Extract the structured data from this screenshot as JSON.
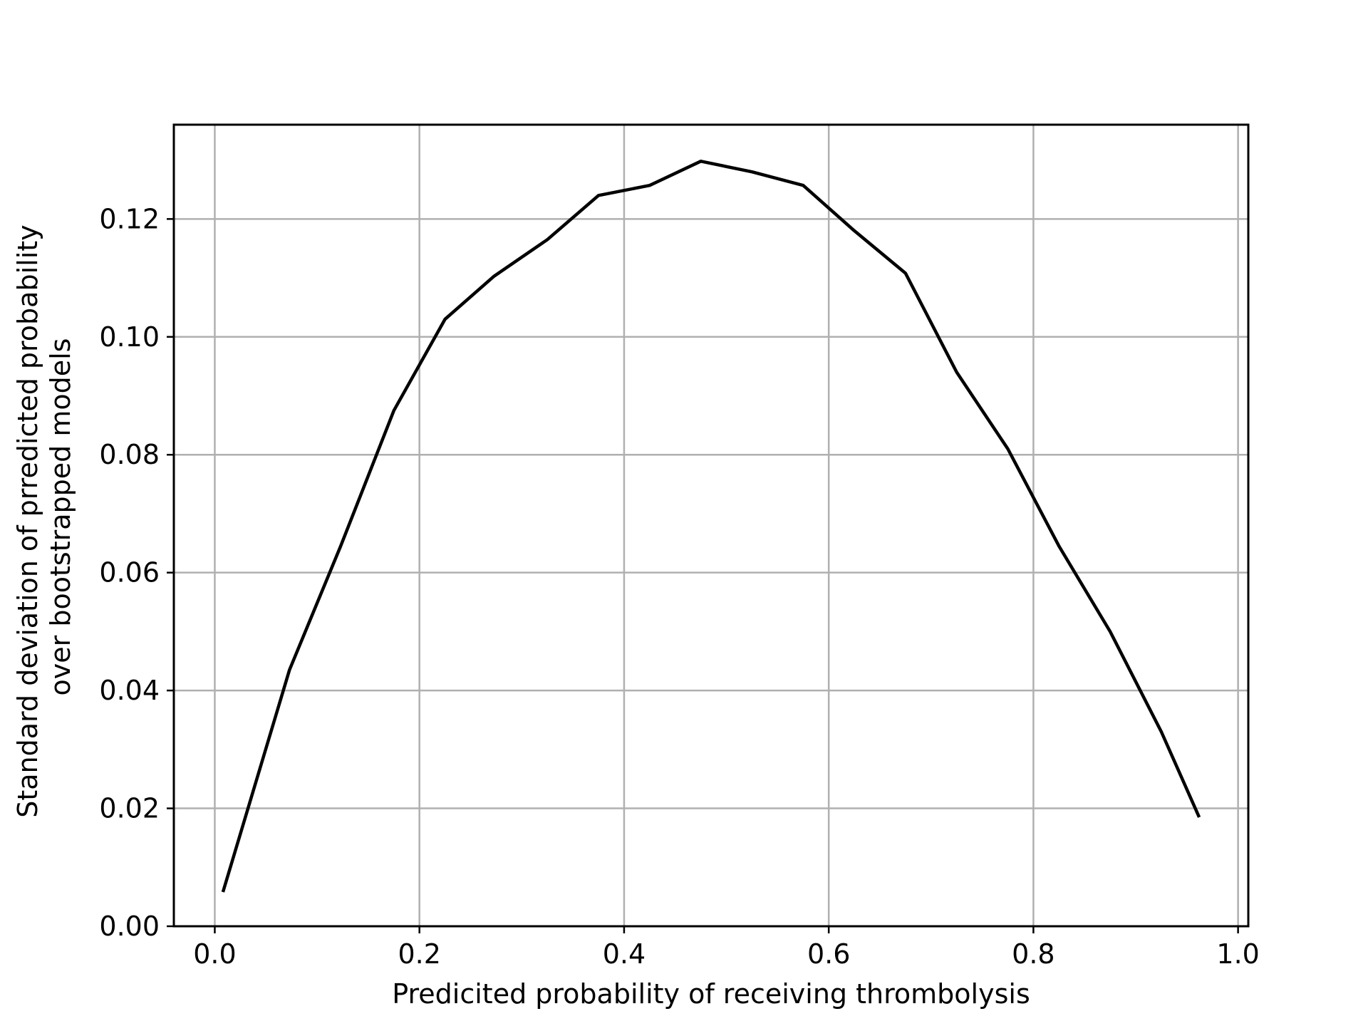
{
  "chart_data": {
    "type": "line",
    "xlabel": "Predicited probability of receiving thrombolysis",
    "ylabel_lines": [
      "Standard deviation of prredicted probability",
      "over bootstrapped models"
    ],
    "xlim": [
      -0.04,
      1.01
    ],
    "ylim": [
      0.0,
      0.136
    ],
    "xticks": [
      0.0,
      0.2,
      0.4,
      0.6,
      0.8,
      1.0
    ],
    "xtick_labels": [
      "0.0",
      "0.2",
      "0.4",
      "0.6",
      "0.8",
      "1.0"
    ],
    "yticks": [
      0.0,
      0.02,
      0.04,
      0.06,
      0.08,
      0.1,
      0.12
    ],
    "ytick_labels": [
      "0.00",
      "0.02",
      "0.04",
      "0.06",
      "0.08",
      "0.10",
      "0.12"
    ],
    "grid": true,
    "line_color": "#000000",
    "series": [
      {
        "x": [
          0.008,
          0.073,
          0.123,
          0.175,
          0.225,
          0.273,
          0.325,
          0.375,
          0.425,
          0.475,
          0.525,
          0.575,
          0.625,
          0.675,
          0.725,
          0.775,
          0.825,
          0.875,
          0.925,
          0.962
        ],
        "y": [
          0.0058,
          0.0435,
          0.0645,
          0.0875,
          0.103,
          0.1103,
          0.1165,
          0.124,
          0.1257,
          0.1298,
          0.128,
          0.1257,
          0.118,
          0.1108,
          0.094,
          0.081,
          0.0645,
          0.05,
          0.033,
          0.0185
        ]
      }
    ]
  }
}
